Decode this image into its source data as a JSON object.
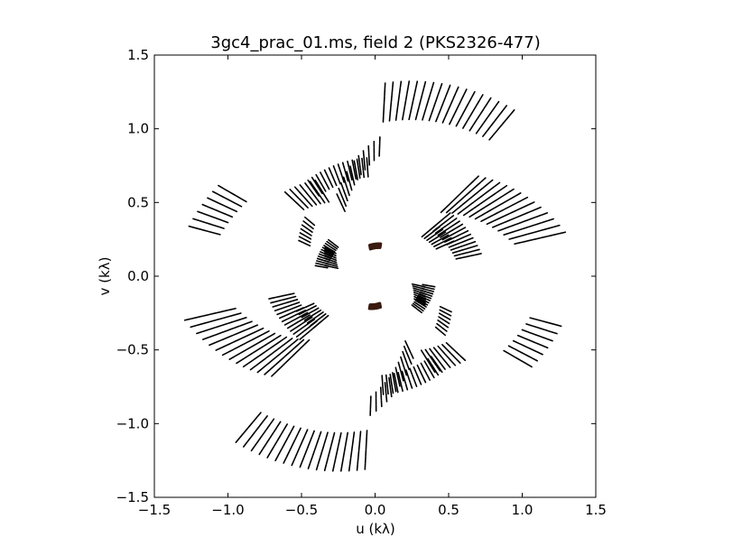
{
  "chart_data": {
    "type": "scatter",
    "title": "3gc4_prac_01.ms, field 2 (PKS2326-477)",
    "xlabel": "u (kλ)",
    "ylabel": "v (kλ)",
    "xlim": [
      -1.5,
      1.5
    ],
    "ylim": [
      -1.5,
      1.5
    ],
    "xticks": [
      -1.5,
      -1.0,
      -0.5,
      0.0,
      0.5,
      1.0,
      1.5
    ],
    "yticks": [
      -1.5,
      -1.0,
      -0.5,
      0.0,
      0.5,
      1.0,
      1.5
    ],
    "xtick_labels": [
      "−1.5",
      "−1.0",
      "−0.5",
      "0.0",
      "0.5",
      "1.0",
      "1.5"
    ],
    "ytick_labels": [
      "−1.5",
      "−1.0",
      "−0.5",
      "0.0",
      "0.5",
      "1.0",
      "1.5"
    ],
    "grid": false,
    "legend": "none",
    "marker_color": "#000000",
    "inner_arc_color": "#3b1a10",
    "tracks": [
      {
        "r_start": 0.21,
        "r_end": 0.2,
        "angle_start_deg": 80,
        "angle_end_deg": 100,
        "spokes": 1
      },
      {
        "r_start": 0.74,
        "r_end": 0.73,
        "angle_start_deg": 94,
        "angle_end_deg": 125,
        "spokes": 3
      },
      {
        "r_start": 0.8,
        "r_end": 1.15,
        "angle_start_deg": 44,
        "angle_end_deg": 13,
        "spokes": 8
      },
      {
        "r_start": 1.18,
        "r_end": 1.34,
        "angle_start_deg": 87,
        "angle_end_deg": 50,
        "spokes": 6
      },
      {
        "r_start": 0.55,
        "r_end": 0.88,
        "angle_start_deg": 115,
        "angle_end_deg": 88,
        "spokes": 3
      },
      {
        "r_start": 0.58,
        "r_end": 0.65,
        "angle_start_deg": 40,
        "angle_end_deg": 12,
        "spokes": 4
      },
      {
        "r_start": 0.36,
        "r_end": 0.37,
        "angle_start_deg": 142,
        "angle_end_deg": 170,
        "spokes": 2
      },
      {
        "r_start": 0.48,
        "r_end": 0.52,
        "angle_start_deg": 40,
        "angle_end_deg": 24,
        "spokes": 3
      },
      {
        "r_start": 1.2,
        "r_end": 1.12,
        "angle_start_deg": 165,
        "angle_end_deg": 150,
        "spokes": 5
      },
      {
        "r_start": 0.75,
        "r_end": 0.68,
        "angle_start_deg": 137,
        "angle_end_deg": 122,
        "spokes": 4
      },
      {
        "r_start": 0.53,
        "r_end": 0.58,
        "angle_start_deg": 155,
        "angle_end_deg": 140,
        "spokes": 2
      },
      {
        "r_start": 0.3,
        "r_end": 0.35,
        "angle_start_deg": 168,
        "angle_end_deg": 150,
        "spokes": 2
      },
      {
        "r_start": 0.21,
        "r_end": 0.2,
        "angle_start_deg": 260,
        "angle_end_deg": 280,
        "spokes": 1
      },
      {
        "r_start": 0.74,
        "r_end": 0.73,
        "angle_start_deg": 274,
        "angle_end_deg": 305,
        "spokes": 3
      },
      {
        "r_start": 0.8,
        "r_end": 1.15,
        "angle_start_deg": 224,
        "angle_end_deg": 193,
        "spokes": 8
      },
      {
        "r_start": 1.18,
        "r_end": 1.34,
        "angle_start_deg": 267,
        "angle_end_deg": 230,
        "spokes": 6
      },
      {
        "r_start": 0.55,
        "r_end": 0.88,
        "angle_start_deg": 295,
        "angle_end_deg": 268,
        "spokes": 3
      },
      {
        "r_start": 0.58,
        "r_end": 0.65,
        "angle_start_deg": 220,
        "angle_end_deg": 192,
        "spokes": 4
      },
      {
        "r_start": 0.36,
        "r_end": 0.37,
        "angle_start_deg": 322,
        "angle_end_deg": 350,
        "spokes": 2
      },
      {
        "r_start": 0.48,
        "r_end": 0.52,
        "angle_start_deg": 220,
        "angle_end_deg": 204,
        "spokes": 3
      },
      {
        "r_start": 1.2,
        "r_end": 1.12,
        "angle_start_deg": 345,
        "angle_end_deg": 330,
        "spokes": 5
      },
      {
        "r_start": 0.75,
        "r_end": 0.68,
        "angle_start_deg": 317,
        "angle_end_deg": 302,
        "spokes": 4
      },
      {
        "r_start": 0.53,
        "r_end": 0.58,
        "angle_start_deg": 335,
        "angle_end_deg": 320,
        "spokes": 2
      },
      {
        "r_start": 0.3,
        "r_end": 0.35,
        "angle_start_deg": 348,
        "angle_end_deg": 330,
        "spokes": 2
      }
    ]
  }
}
